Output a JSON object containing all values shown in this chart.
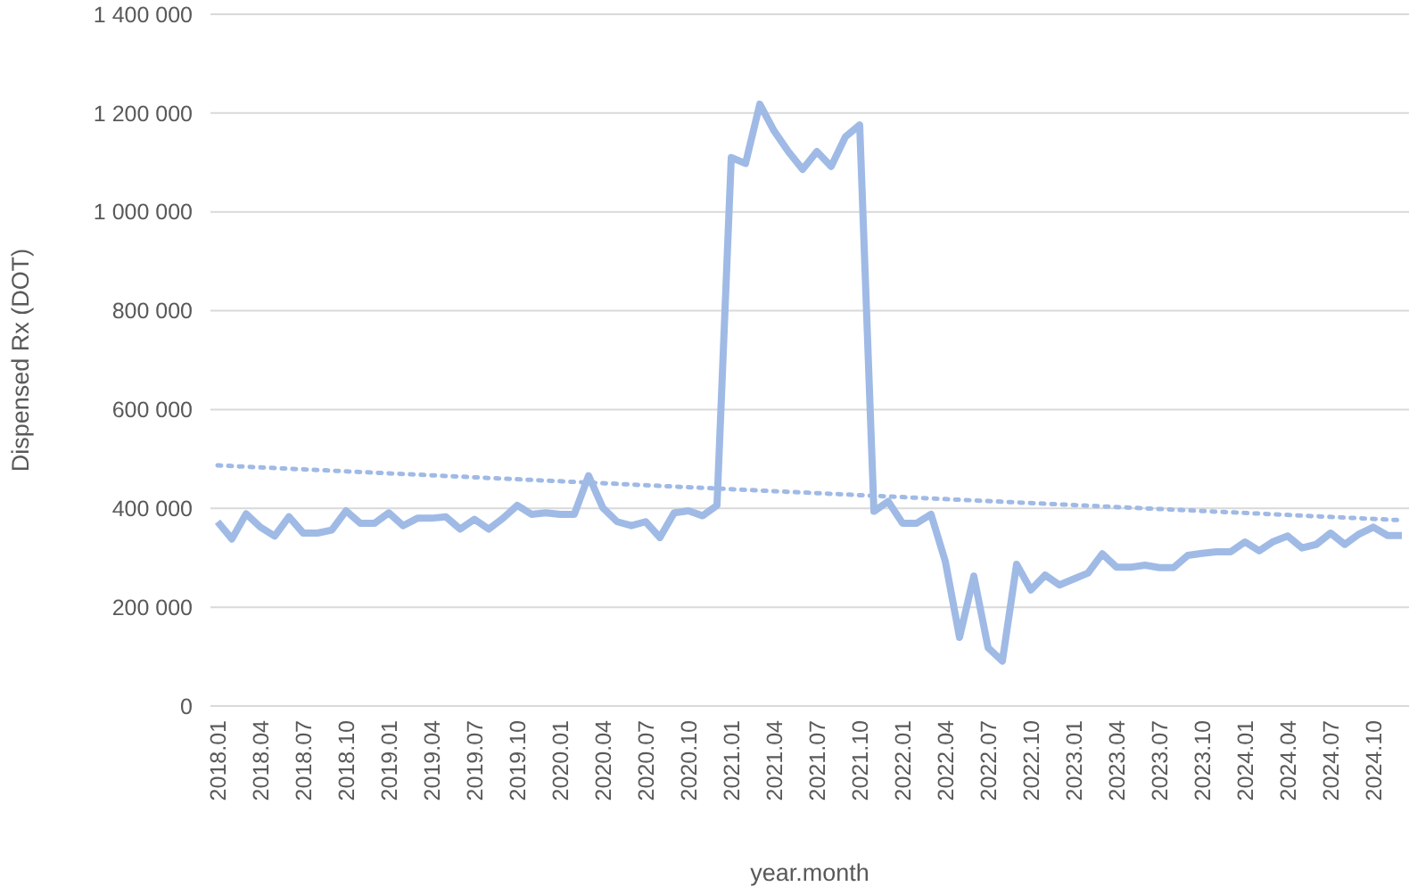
{
  "chart_data": {
    "type": "line",
    "xlabel": "year.month",
    "ylabel": "Dispensed Rx (DOT)",
    "categories": [
      "2018.01",
      null,
      null,
      "2018.04",
      null,
      null,
      "2018.07",
      null,
      null,
      "2018.10",
      null,
      null,
      "2019.01",
      null,
      null,
      "2019.04",
      null,
      null,
      "2019.07",
      null,
      null,
      "2019.10",
      null,
      null,
      "2020.01",
      null,
      null,
      "2020.04",
      null,
      null,
      "2020.07",
      null,
      null,
      "2020.10",
      null,
      null,
      "2021.01",
      null,
      null,
      "2021.04",
      null,
      null,
      "2021.07",
      null,
      null,
      "2021.10",
      null,
      null,
      "2022.01",
      null,
      null,
      "2022.04",
      null,
      null,
      "2022.07",
      null,
      null,
      "2022.10",
      null,
      null,
      "2023.01",
      null,
      null,
      "2023.04",
      null,
      null,
      "2023.07",
      null,
      null,
      "2023.10",
      null,
      null,
      "2024.01",
      null,
      null,
      "2024.04",
      null,
      null,
      "2024.07",
      null,
      null,
      "2024.10",
      null,
      null
    ],
    "series": [
      {
        "color": "#a0bae6",
        "line_style": "solid",
        "values": [
          373000,
          338000,
          389000,
          362000,
          344000,
          383000,
          350000,
          350000,
          356000,
          395000,
          370000,
          370000,
          391000,
          365000,
          380000,
          380000,
          383000,
          358000,
          378000,
          358000,
          380000,
          406000,
          388000,
          391000,
          388000,
          388000,
          466000,
          401000,
          373000,
          365000,
          373000,
          341000,
          391000,
          395000,
          385000,
          406000,
          1110000,
          1098000,
          1218000,
          1164000,
          1122000,
          1086000,
          1122000,
          1092000,
          1152000,
          1176000,
          394000,
          414000,
          370000,
          370000,
          388000,
          293000,
          139000,
          263000,
          118000,
          91000,
          287000,
          235000,
          265000,
          245000,
          257000,
          269000,
          308000,
          281000,
          281000,
          285000,
          280000,
          280000,
          305000,
          309000,
          312000,
          312000,
          332000,
          314000,
          333000,
          344000,
          320000,
          327000,
          350000,
          327000,
          348000,
          362000,
          345000,
          345000
        ]
      },
      {
        "type": "line",
        "color": "#a0bae6",
        "line_style": "dotted",
        "values": [
          487000,
          null,
          null,
          null,
          null,
          null,
          null,
          null,
          null,
          null,
          null,
          null,
          null,
          null,
          null,
          null,
          null,
          null,
          null,
          null,
          null,
          null,
          null,
          null,
          null,
          null,
          null,
          null,
          null,
          null,
          null,
          null,
          null,
          null,
          null,
          null,
          null,
          null,
          null,
          null,
          null,
          null,
          null,
          null,
          null,
          null,
          null,
          null,
          null,
          null,
          null,
          null,
          null,
          null,
          null,
          null,
          null,
          null,
          null,
          null,
          null,
          null,
          null,
          null,
          null,
          null,
          null,
          null,
          null,
          null,
          null,
          null,
          null,
          null,
          null,
          null,
          null,
          null,
          null,
          null,
          null,
          null,
          null,
          376000
        ]
      }
    ],
    "ylim": [
      0,
      1400000
    ],
    "yticks": [
      0,
      {
        "value": 200000,
        "label": "200 000"
      },
      {
        "value": 400000,
        "label": "400 000"
      },
      {
        "value": 600000,
        "label": "600 000"
      },
      {
        "value": 800000,
        "label": "800 000"
      },
      {
        "value": 1000000,
        "label": "1 000 000"
      },
      {
        "value": 1200000,
        "label": "1 200 000"
      },
      {
        "value": 1400000,
        "label": "1 400 000"
      }
    ],
    "grid": "y",
    "marker": "none"
  }
}
